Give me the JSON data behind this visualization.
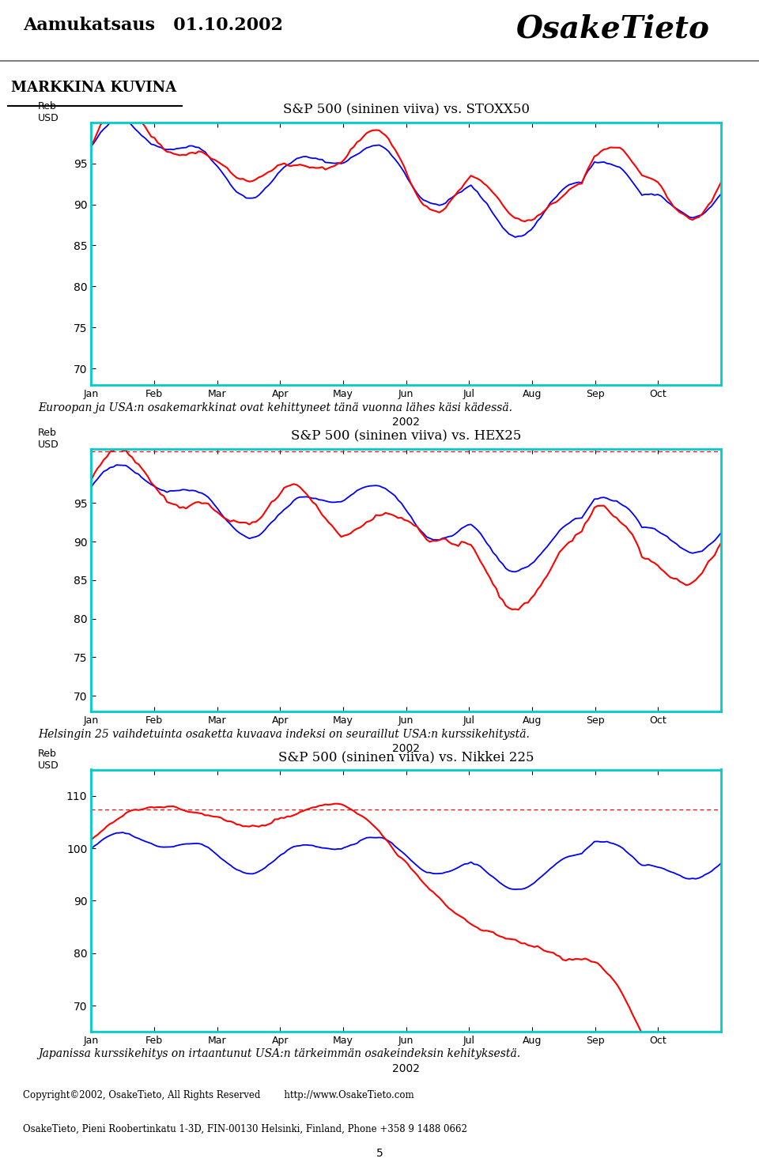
{
  "title": "Aamukatsaus   01.10.2002",
  "brand": "OsakeTieto",
  "section_title": "MARKKINA KUVINA",
  "chart1_title": "S&P 500 (sininen viiva) vs. STOXX50",
  "chart2_title": "S&P 500 (sininen viiva) vs. HEX25",
  "chart3_title": "S&P 500 (sininen viiva) vs. Nikkei 225",
  "caption1": "Euroopan ja USA:n osakemarkkinat ovat kehittyneet tänä vuonna lähes käsi kädessä.",
  "caption2": "Helsingin 25 vaihdetuinta osaketta kuvaava indeksi on seuraillut USA:n kurssikehitystä.",
  "caption3": "Japanissa kurssikehitys on irtaantunut USA:n tärkeimmän osakeindeksin kehityksestä.",
  "footer1": "Copyright©2002, OsakeTieto, All Rights Reserved        http://www.OsakeTieto.com",
  "footer2": "OsakeTieto, Pieni Roobertinkatu 1-3D, FIN-00130 Helsinki, Finland, Phone +358 9 1488 0662",
  "page_number": "5",
  "xlabel_center": "2002",
  "x_tick_labels": [
    "Jan",
    "Feb",
    "Mar",
    "Apr",
    "May",
    "Jun",
    "Jul",
    "Aug",
    "Sep",
    "Oct"
  ],
  "chart1_ylim": [
    68,
    100
  ],
  "chart1_yticks": [
    70,
    75,
    80,
    85,
    90,
    95
  ],
  "chart2_ylim": [
    68,
    102
  ],
  "chart2_yticks": [
    70,
    75,
    80,
    85,
    90,
    95
  ],
  "chart3_ylim": [
    65,
    115
  ],
  "chart3_yticks": [
    70,
    80,
    90,
    100,
    110
  ],
  "blue_color": "#0000FF",
  "red_color": "#FF0000",
  "dashed_color": "#FF0000",
  "border_color": "#00CCCC",
  "bg_color": "#FFFFFF",
  "n_points": 200
}
